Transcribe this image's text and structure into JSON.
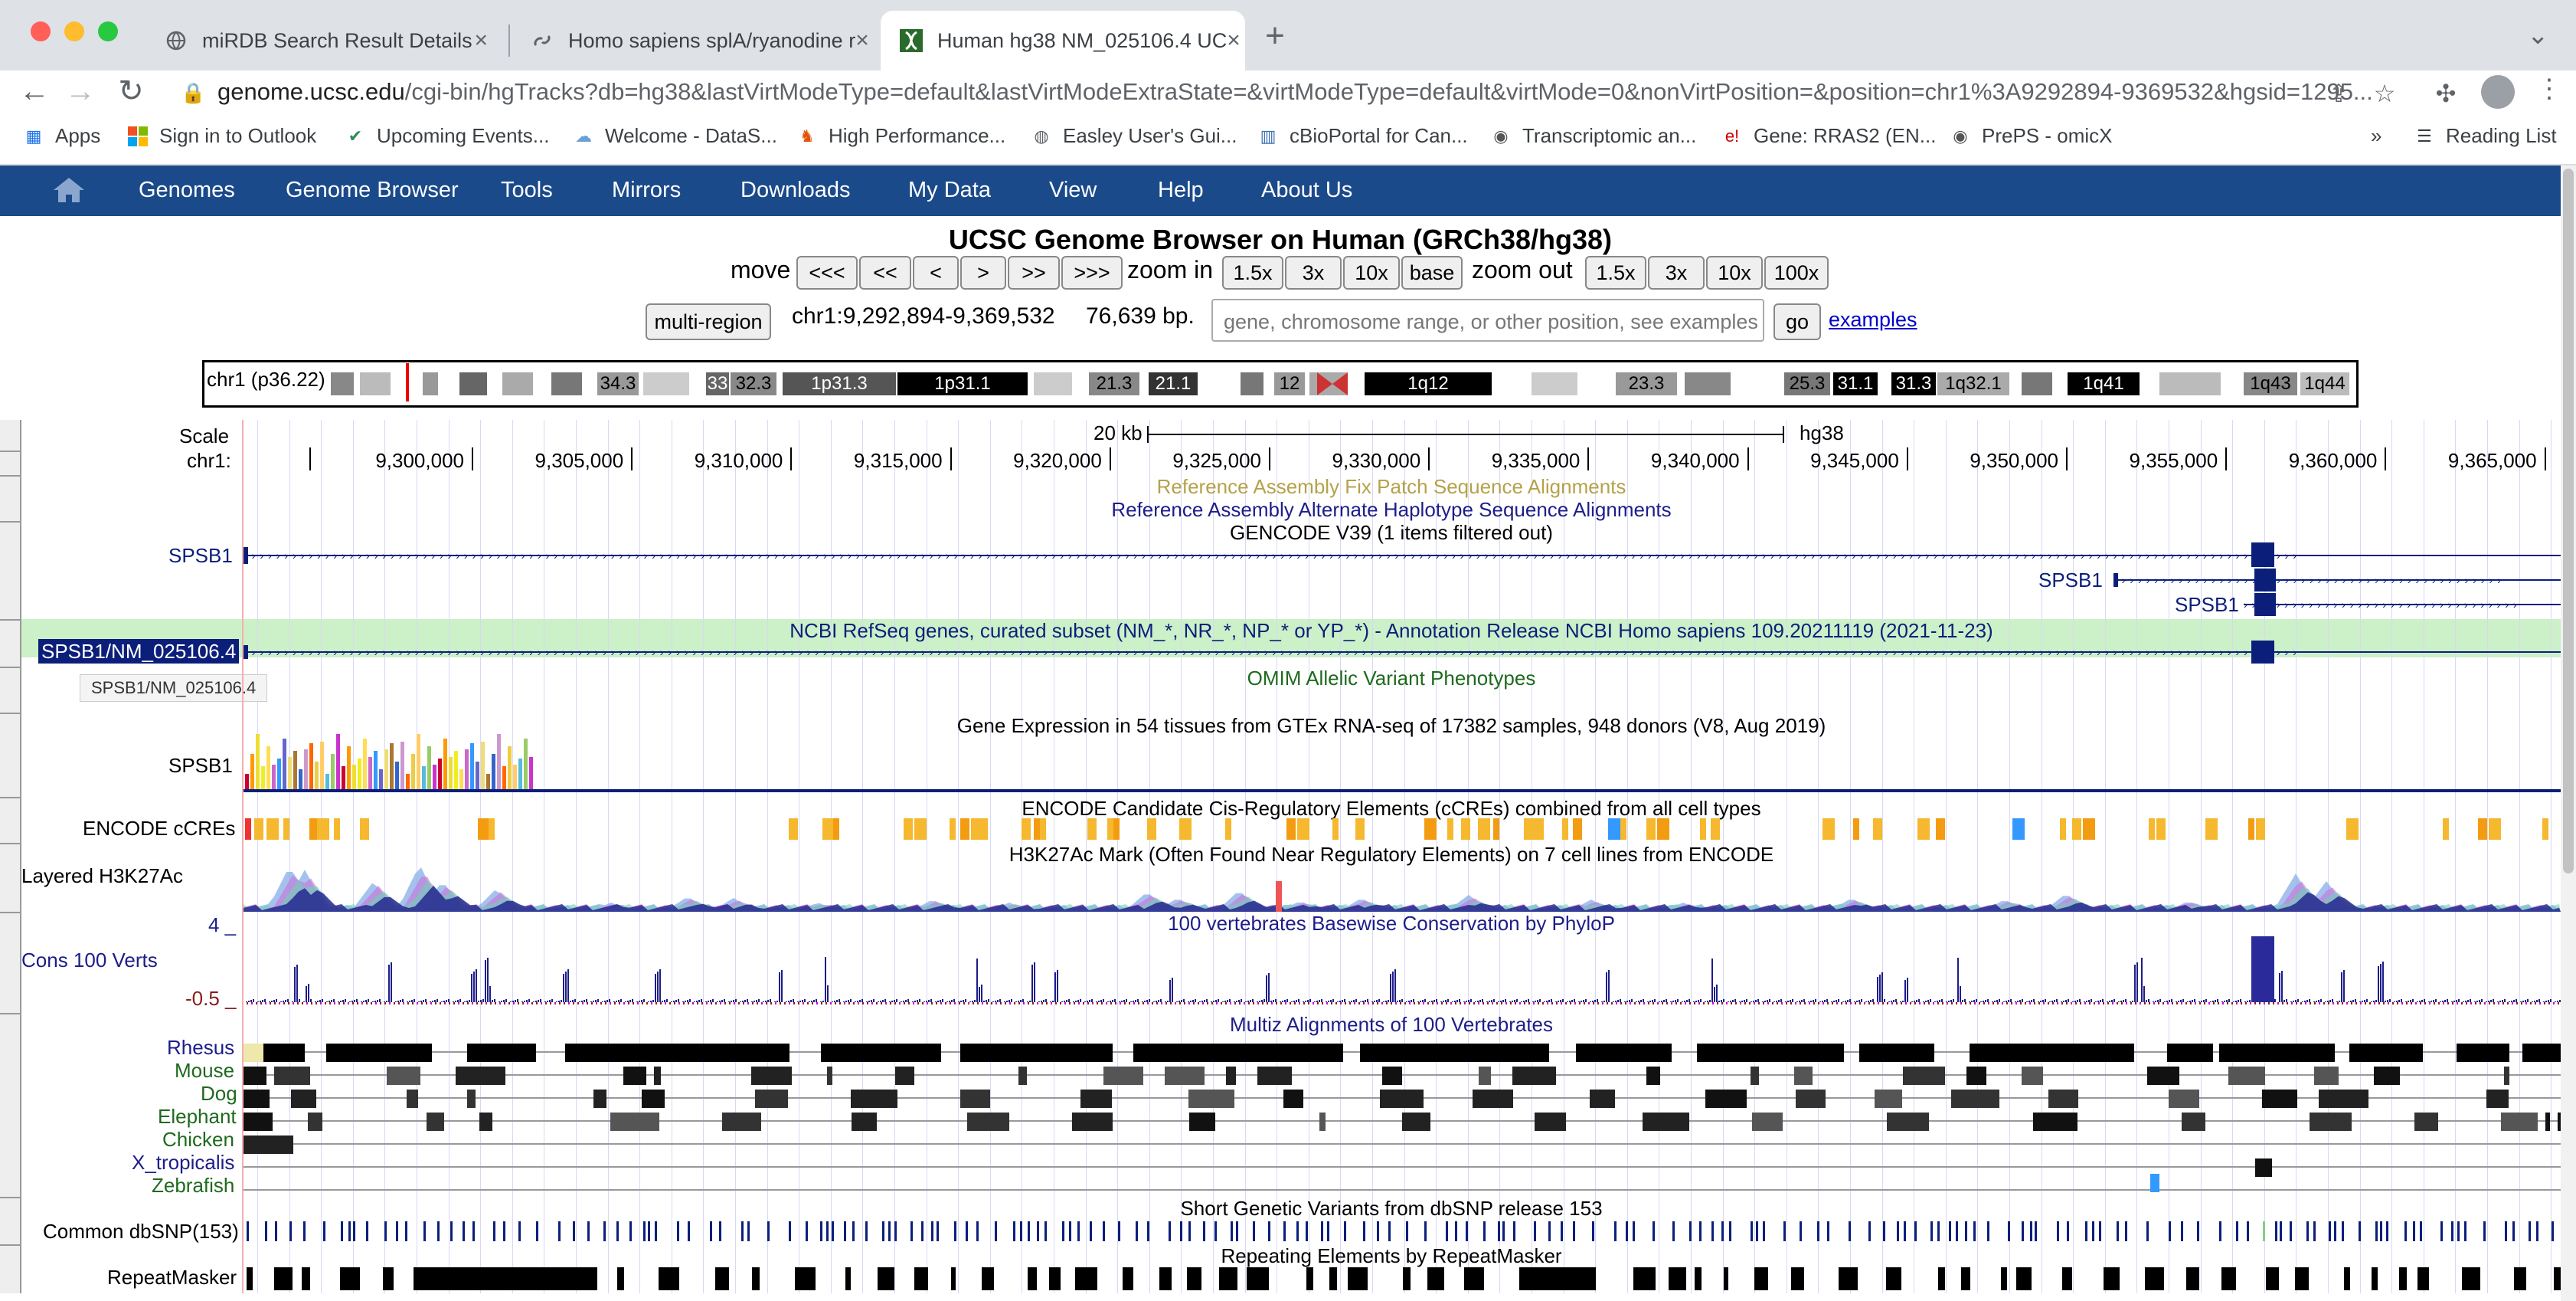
{
  "browser": {
    "tabs": [
      {
        "title": "miRDB Search Result Details"
      },
      {
        "title": "Homo sapiens splA/ryanodine r"
      },
      {
        "title": "Human hg38 NM_025106.4 UC"
      }
    ],
    "url_host": "genome.ucsc.edu",
    "url_path": "/cgi-bin/hgTracks?db=hg38&lastVirtModeType=default&lastVirtModeExtraState=&virtModeType=default&virtMode=0&nonVirtPosition=&position=chr1%3A9292894-9369532&hgsid=1295...",
    "bookmarks": [
      {
        "label": "Apps"
      },
      {
        "label": "Sign in to Outlook"
      },
      {
        "label": "Upcoming Events..."
      },
      {
        "label": "Welcome - DataS..."
      },
      {
        "label": "High Performance..."
      },
      {
        "label": "Easley User's Gui..."
      },
      {
        "label": "cBioPortal for Can..."
      },
      {
        "label": "Transcriptomic an..."
      },
      {
        "label": "Gene: RRAS2 (EN..."
      },
      {
        "label": "PrePS - omicX"
      }
    ],
    "reading_list": "Reading List",
    "more": "»"
  },
  "nav": {
    "items": [
      "Genomes",
      "Genome Browser",
      "Tools",
      "Mirrors",
      "Downloads",
      "My Data",
      "View",
      "Help",
      "About Us"
    ]
  },
  "controls": {
    "title": "UCSC Genome Browser on Human (GRCh38/hg38)",
    "move_label": "move",
    "move_buttons": [
      "<<<",
      "<<",
      "<",
      ">",
      ">>",
      ">>>"
    ],
    "zoom_in_label": "zoom in",
    "zoom_in_buttons": [
      "1.5x",
      "3x",
      "10x",
      "base"
    ],
    "zoom_out_label": "zoom out",
    "zoom_out_buttons": [
      "1.5x",
      "3x",
      "10x",
      "100x"
    ],
    "multi_region": "multi-region",
    "position": "chr1:9,292,894-9,369,532",
    "bp": "76,639 bp.",
    "search_placeholder": "gene, chromosome range, or other position, see examples",
    "go": "go",
    "examples": "examples"
  },
  "ideogram": {
    "label": "chr1 (p36.22)",
    "bands": [
      "34.3",
      "33",
      "32.3",
      "1p31.3",
      "1p31.1",
      "21.3",
      "21.1",
      "12",
      "1q12",
      "23.3",
      "25.3",
      "31.1",
      "31.3",
      "1q32.1",
      "1q41",
      "1q43",
      "1q44"
    ]
  },
  "tracks": {
    "scale_label": "Scale",
    "scale_bar": "20 kb",
    "assembly": "hg38",
    "chrom_label": "chr1:",
    "ticks": [
      "9,300,000",
      "9,305,000",
      "9,310,000",
      "9,315,000",
      "9,320,000",
      "9,325,000",
      "9,330,000",
      "9,335,000",
      "9,340,000",
      "9,345,000",
      "9,350,000",
      "9,355,000",
      "9,360,000",
      "9,365,000"
    ],
    "fix_patch": "Reference Assembly Fix Patch Sequence Alignments",
    "alt_haplo": "Reference Assembly Alternate Haplotype Sequence Alignments",
    "gencode": "GENCODE V39 (1 items filtered out)",
    "gene_spsb1": "SPSB1",
    "refseq_title": "NCBI RefSeq genes, curated subset (NM_*, NR_*, NP_* or YP_*) - Annotation Release NCBI Homo sapiens 109.20211119 (2021-11-23)",
    "refseq_item": "SPSB1/NM_025106.4",
    "tooltip": "SPSB1/NM_025106.4",
    "omim": "OMIM Allelic Variant Phenotypes",
    "gtex": "Gene Expression in 54 tissues from GTEx RNA-seq of 17382 samples, 948 donors (V8, Aug 2019)",
    "encode_label": "ENCODE cCREs",
    "encode_title": "ENCODE Candidate Cis-Regulatory Elements (cCREs) combined from all cell types",
    "h3k_label": "Layered H3K27Ac",
    "h3k_title": "H3K27Ac Mark (Often Found Near Regulatory Elements) on 7 cell lines from ENCODE",
    "cons_label": "Cons 100 Verts",
    "cons_title": "100 vertebrates Basewise Conservation by PhyloP",
    "cons_max": "4 _",
    "cons_min": "-0.5 _",
    "multiz_title": "Multiz Alignments of 100 Vertebrates",
    "species": [
      "Rhesus",
      "Mouse",
      "Dog",
      "Elephant",
      "Chicken",
      "X_tropicalis",
      "Zebrafish"
    ],
    "dbsnp_title": "Short Genetic Variants from dbSNP release 153",
    "dbsnp_label": "Common dbSNP(153)",
    "repeat_title": "Repeating Elements by RepeatMasker",
    "repeat_label": "RepeatMasker"
  },
  "colors": {
    "nav_bg": "#1a4a8a",
    "gene": "#0b1f7a",
    "refseq_bg": "#ccf0c8",
    "fix_patch": "#b5a24a",
    "encode": "#f5b82e",
    "cons": "#1d1d8a"
  }
}
